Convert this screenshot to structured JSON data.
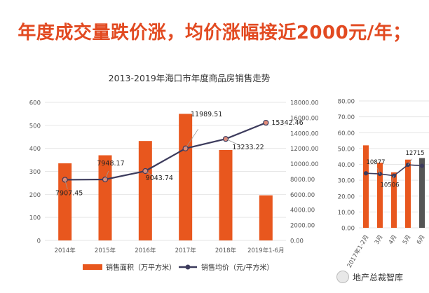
{
  "headline": "年度成交量跌价涨，均价涨幅接近2000元/年；",
  "watermark": "地产总裁智库",
  "chart_data": [
    {
      "type": "bar",
      "title": "2013-2019年海口市年度商品房销售走势",
      "categories": [
        "2014年",
        "2015年",
        "2016年",
        "2017年",
        "2018年",
        "2019年1-6月"
      ],
      "series": [
        {
          "name": "销售面积（万平方米）",
          "axis": "left",
          "type": "bar",
          "color": "#e8571e",
          "values": [
            335,
            370,
            432,
            550,
            393,
            196
          ]
        },
        {
          "name": "销售均价（元/平方米）",
          "axis": "right",
          "type": "line",
          "color": "#3c3b5c",
          "values": [
            7907.45,
            7948.17,
            9043.74,
            11989.51,
            13233.22,
            15342.46
          ],
          "labels": [
            "7907.45",
            "7948.17",
            "9043.74",
            "11989.51",
            "13233.22",
            "15342.46"
          ]
        }
      ],
      "ylim_left": [
        0,
        600
      ],
      "yticks_left": [
        "0",
        "100",
        "200",
        "300",
        "400",
        "500",
        "600"
      ],
      "ylim_right": [
        0,
        18000
      ],
      "yticks_right": [
        "0.00",
        "2000.00",
        "4000.00",
        "6000.00",
        "8000.00",
        "10000.00",
        "12000.00",
        "14000.00",
        "16000.00",
        "18000.00"
      ],
      "grid": true,
      "legend_position": "bottom"
    },
    {
      "type": "bar",
      "title": "",
      "categories": [
        "2017年1-2月",
        "3月",
        "4月",
        "5月",
        "6月"
      ],
      "series": [
        {
          "name": "",
          "axis": "left",
          "type": "bar",
          "color": "#e8571e",
          "values": [
            52,
            41,
            35,
            43,
            44
          ],
          "colors": [
            "#e8571e",
            "#e8571e",
            "#e8571e",
            "#e8571e",
            "#555555"
          ]
        },
        {
          "name": "",
          "axis": "right",
          "type": "line",
          "color": "#3c3b5c",
          "values": [
            11000,
            10877,
            10506,
            12715,
            12500
          ],
          "labels": [
            "",
            "10877",
            "10506",
            "12715",
            ""
          ]
        }
      ],
      "ylim_left": [
        0,
        80
      ],
      "yticks_left": [
        "0.00",
        "10.00",
        "20.00",
        "30.00",
        "40.00",
        "50.00",
        "60.00",
        "70.00",
        "80.00"
      ],
      "ylim_right": [
        0,
        25600
      ],
      "grid": true,
      "cropped": true
    }
  ]
}
